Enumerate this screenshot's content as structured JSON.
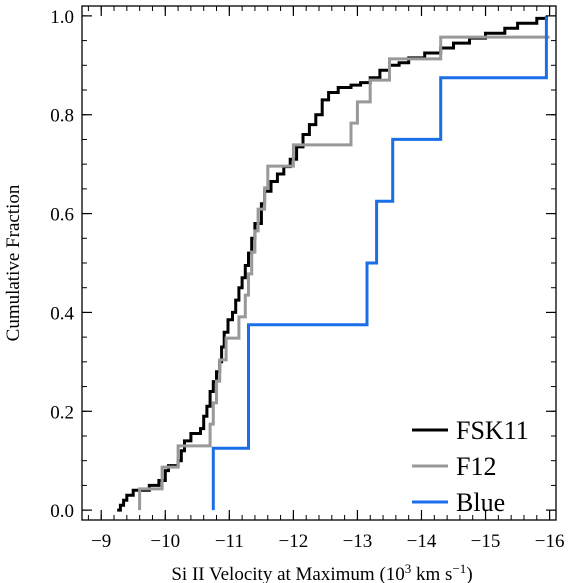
{
  "chart_data": {
    "type": "line",
    "step": true,
    "xlabel": "Si II Velocity at Maximum (10",
    "xlabel_sup": "3",
    "xlabel_mid": " km s",
    "xlabel_sup2": "−1",
    "xlabel_end": ")",
    "ylabel": "Cumulative Fraction",
    "xlim": [
      -8.7,
      -16.1
    ],
    "ylim": [
      -0.02,
      1.02
    ],
    "x_ticks": [
      {
        "value": -9,
        "label": "−9"
      },
      {
        "value": -10,
        "label": "−10"
      },
      {
        "value": -11,
        "label": "−11"
      },
      {
        "value": -12,
        "label": "−12"
      },
      {
        "value": -13,
        "label": "−13"
      },
      {
        "value": -14,
        "label": "−14"
      },
      {
        "value": -15,
        "label": "−15"
      },
      {
        "value": -16,
        "label": "−16"
      }
    ],
    "y_ticks": [
      {
        "value": 0.0,
        "label": "0.0"
      },
      {
        "value": 0.2,
        "label": "0.2"
      },
      {
        "value": 0.4,
        "label": "0.4"
      },
      {
        "value": 0.6,
        "label": "0.6"
      },
      {
        "value": 0.8,
        "label": "0.8"
      },
      {
        "value": 1.0,
        "label": "1.0"
      }
    ],
    "legend_position": "bottom-right",
    "series": [
      {
        "name": "FSK11",
        "color": "#000000",
        "points": [
          [
            -9.25,
            0.0
          ],
          [
            -9.3,
            0.01
          ],
          [
            -9.35,
            0.02
          ],
          [
            -9.4,
            0.03
          ],
          [
            -9.5,
            0.04
          ],
          [
            -9.75,
            0.05
          ],
          [
            -9.9,
            0.06
          ],
          [
            -10.0,
            0.08
          ],
          [
            -10.05,
            0.09
          ],
          [
            -10.2,
            0.1
          ],
          [
            -10.25,
            0.12
          ],
          [
            -10.3,
            0.14
          ],
          [
            -10.4,
            0.155
          ],
          [
            -10.55,
            0.165
          ],
          [
            -10.6,
            0.19
          ],
          [
            -10.65,
            0.21
          ],
          [
            -10.7,
            0.24
          ],
          [
            -10.75,
            0.26
          ],
          [
            -10.8,
            0.28
          ],
          [
            -10.85,
            0.3
          ],
          [
            -10.88,
            0.33
          ],
          [
            -10.92,
            0.36
          ],
          [
            -10.98,
            0.385
          ],
          [
            -11.05,
            0.4
          ],
          [
            -11.1,
            0.425
          ],
          [
            -11.15,
            0.45
          ],
          [
            -11.2,
            0.47
          ],
          [
            -11.25,
            0.495
          ],
          [
            -11.3,
            0.52
          ],
          [
            -11.35,
            0.55
          ],
          [
            -11.4,
            0.58
          ],
          [
            -11.5,
            0.62
          ],
          [
            -11.55,
            0.645
          ],
          [
            -11.65,
            0.665
          ],
          [
            -11.75,
            0.68
          ],
          [
            -11.85,
            0.695
          ],
          [
            -11.95,
            0.71
          ],
          [
            -12.05,
            0.735
          ],
          [
            -12.15,
            0.76
          ],
          [
            -12.25,
            0.78
          ],
          [
            -12.35,
            0.8
          ],
          [
            -12.45,
            0.83
          ],
          [
            -12.55,
            0.845
          ],
          [
            -12.7,
            0.855
          ],
          [
            -12.9,
            0.86
          ],
          [
            -13.05,
            0.865
          ],
          [
            -13.2,
            0.875
          ],
          [
            -13.35,
            0.89
          ],
          [
            -13.5,
            0.9
          ],
          [
            -13.65,
            0.905
          ],
          [
            -13.8,
            0.915
          ],
          [
            -14.05,
            0.925
          ],
          [
            -14.3,
            0.935
          ],
          [
            -14.5,
            0.945
          ],
          [
            -14.75,
            0.955
          ],
          [
            -15.0,
            0.965
          ],
          [
            -15.3,
            0.975
          ],
          [
            -15.5,
            0.985
          ],
          [
            -15.8,
            0.995
          ],
          [
            -15.95,
            1.0
          ]
        ]
      },
      {
        "name": "F12",
        "color": "#999999",
        "points": [
          [
            -9.6,
            0.0
          ],
          [
            -9.6,
            0.043
          ],
          [
            -9.95,
            0.087
          ],
          [
            -10.2,
            0.13
          ],
          [
            -10.7,
            0.174
          ],
          [
            -10.75,
            0.217
          ],
          [
            -10.8,
            0.261
          ],
          [
            -10.85,
            0.304
          ],
          [
            -10.95,
            0.348
          ],
          [
            -11.15,
            0.391
          ],
          [
            -11.25,
            0.435
          ],
          [
            -11.3,
            0.478
          ],
          [
            -11.35,
            0.522
          ],
          [
            -11.4,
            0.565
          ],
          [
            -11.45,
            0.609
          ],
          [
            -11.55,
            0.652
          ],
          [
            -11.6,
            0.696
          ],
          [
            -12.0,
            0.739
          ],
          [
            -12.9,
            0.783
          ],
          [
            -13.0,
            0.826
          ],
          [
            -13.2,
            0.87
          ],
          [
            -13.5,
            0.913
          ],
          [
            -14.3,
            0.957
          ],
          [
            -16.0,
            0.957
          ]
        ]
      },
      {
        "name": "Blue",
        "color": "#1a6fe8",
        "points": [
          [
            -10.75,
            0.0
          ],
          [
            -10.75,
            0.125
          ],
          [
            -11.3,
            0.375
          ],
          [
            -13.15,
            0.5
          ],
          [
            -13.3,
            0.625
          ],
          [
            -13.55,
            0.75
          ],
          [
            -14.3,
            0.875
          ],
          [
            -15.95,
            1.0
          ]
        ]
      }
    ]
  }
}
